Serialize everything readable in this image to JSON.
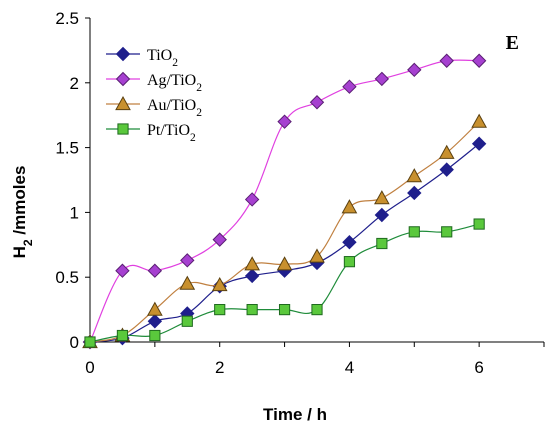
{
  "chart_data": {
    "type": "line",
    "panel_label": "E",
    "xlabel": "Time / h",
    "ylabel": "H2 /mmoles",
    "xlim": [
      0,
      7
    ],
    "ylim": [
      0,
      2.5
    ],
    "x_ticks": [
      "0",
      "2",
      "4",
      "6"
    ],
    "y_ticks": [
      "0",
      "0.5",
      "1",
      "1.5",
      "2",
      "2.5"
    ],
    "grid": false,
    "legend_position": "top-left",
    "series": [
      {
        "name": "TiO2",
        "marker": "diamond",
        "line_color": "#1F1F8C",
        "marker_fill": "#1F1F8C",
        "marker_edge": "#1F1F8C",
        "x": [
          0,
          0.5,
          1,
          1.5,
          2,
          2.5,
          3,
          3.5,
          4,
          4.5,
          5,
          5.5,
          6
        ],
        "y": [
          0,
          0.03,
          0.16,
          0.22,
          0.43,
          0.51,
          0.55,
          0.61,
          0.77,
          0.98,
          1.15,
          1.33,
          1.53
        ]
      },
      {
        "name": "Ag/TiO2",
        "marker": "diamond",
        "line_color": "#E040E0",
        "marker_fill": "#A640D0",
        "marker_edge": "#5A1F73",
        "x": [
          0,
          0.5,
          1,
          1.5,
          2,
          2.5,
          3,
          3.5,
          4,
          4.5,
          5,
          5.5,
          6
        ],
        "y": [
          0,
          0.55,
          0.55,
          0.63,
          0.79,
          1.1,
          1.7,
          1.85,
          1.97,
          2.03,
          2.1,
          2.17,
          2.17
        ]
      },
      {
        "name": "Au/TiO2",
        "marker": "triangle",
        "line_color": "#C08040",
        "marker_fill": "#C8902E",
        "marker_edge": "#5A4010",
        "x": [
          0,
          0.5,
          1,
          1.5,
          2,
          2.5,
          3,
          3.5,
          4,
          4.5,
          5,
          5.5,
          6
        ],
        "y": [
          0,
          0.05,
          0.25,
          0.45,
          0.44,
          0.6,
          0.6,
          0.66,
          1.04,
          1.11,
          1.28,
          1.46,
          1.7
        ]
      },
      {
        "name": "Pt/TiO2",
        "marker": "square",
        "line_color": "#1F8C3A",
        "marker_fill": "#5AC83C",
        "marker_edge": "#1F6A1F",
        "x": [
          0,
          0.5,
          1,
          1.5,
          2,
          2.5,
          3,
          3.5,
          4,
          4.5,
          5,
          5.5,
          6
        ],
        "y": [
          0,
          0.05,
          0.05,
          0.16,
          0.25,
          0.25,
          0.25,
          0.25,
          0.62,
          0.76,
          0.85,
          0.85,
          0.91
        ]
      }
    ]
  }
}
